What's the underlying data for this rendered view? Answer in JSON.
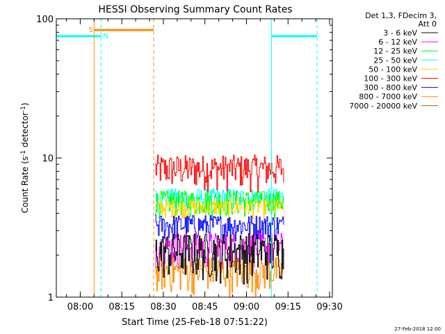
{
  "chart_data": {
    "type": "line",
    "title": "HESSI Observing Summary Count Rates",
    "xlabel": "Start Time (25-Feb-18 07:51:22)",
    "ylabel_main": "Count Rate (s",
    "ylabel_sup1": "-1",
    "ylabel_mid": " detector",
    "ylabel_sup2": "-1",
    "ylabel_end": ")",
    "y_scale": "log",
    "ylim": [
      1,
      100
    ],
    "xlim": [
      "07:51:22",
      "09:31:00"
    ],
    "x_ticks": [
      {
        "label": "08:00",
        "t": "08:00"
      },
      {
        "label": "08:15",
        "t": "08:15"
      },
      {
        "label": "08:30",
        "t": "08:30"
      },
      {
        "label": "08:45",
        "t": "08:45"
      },
      {
        "label": "09:00",
        "t": "09:00"
      },
      {
        "label": "09:15",
        "t": "09:15"
      },
      {
        "label": "09:30",
        "t": "09:30"
      }
    ],
    "y_ticks": [
      {
        "label": "1",
        "v": 1
      },
      {
        "label": "10",
        "v": 10
      },
      {
        "label": "100",
        "v": 100
      }
    ],
    "legend": {
      "position": "right",
      "header1": "Det 1,3, FDecim 3,",
      "header2": "Att 0",
      "entries": [
        {
          "label": "3 - 6 keV",
          "color": "#000000"
        },
        {
          "label": "6 - 12 keV",
          "color": "#ff00ff"
        },
        {
          "label": "12 - 25 keV",
          "color": "#00ff00"
        },
        {
          "label": "25 - 50 keV",
          "color": "#00ffff"
        },
        {
          "label": "50 - 100 keV",
          "color": "#ffd700"
        },
        {
          "label": "100 - 300 keV",
          "color": "#ff0000"
        },
        {
          "label": "300 - 800 keV",
          "color": "#0000ff"
        },
        {
          "label": "800 - 7000 keV",
          "color": "#ff8c00"
        },
        {
          "label": "7000 - 20000 keV",
          "color": "#8b6508"
        }
      ]
    },
    "time_markers": [
      {
        "type": "night_start",
        "t": "07:51:22",
        "style": "solid",
        "color": "#00ffff"
      },
      {
        "type": "night_end",
        "t": "08:07:30",
        "style": "dashed",
        "color": "#00ffff"
      },
      {
        "type": "night_start",
        "t": "09:09:00",
        "style": "solid",
        "color": "#00ffff"
      },
      {
        "type": "night_end",
        "t": "09:25:30",
        "style": "dashed",
        "color": "#00ffff"
      },
      {
        "type": "saa_start",
        "t": "08:05:00",
        "style": "solid",
        "color": "#ff8c00"
      },
      {
        "type": "saa_end",
        "t": "08:26:30",
        "style": "dashed",
        "color": "#ff8c00"
      }
    ],
    "flag_bars": [
      {
        "label": "N",
        "t_start": "07:51:22",
        "t_end": "08:07:30",
        "y": 75,
        "color": "#00ffff"
      },
      {
        "label": "",
        "t_start": "09:09:00",
        "t_end": "09:25:30",
        "y": 75,
        "color": "#00ffff"
      },
      {
        "label": "S",
        "t_start": "08:05:00",
        "t_end": "08:26:30",
        "y": 83,
        "color": "#ff8c00"
      }
    ],
    "data_interval": {
      "t_start": "08:27:00",
      "t_end": "09:13:30"
    },
    "series": [
      {
        "name": "100 - 300 keV",
        "color": "#ff0000",
        "level_min": 5.5,
        "level_max": 10.5
      },
      {
        "name": "25 - 50 keV",
        "color": "#00ffff",
        "level_min": 4.0,
        "level_max": 6.0
      },
      {
        "name": "12 - 25 keV",
        "color": "#00ff00",
        "level_min": 3.6,
        "level_max": 5.8
      },
      {
        "name": "50 - 100 keV",
        "color": "#ffd700",
        "level_min": 3.6,
        "level_max": 5.0
      },
      {
        "name": "300 - 800 keV",
        "color": "#0000ff",
        "level_min": 2.4,
        "level_max": 3.9
      },
      {
        "name": "6 - 12 keV",
        "color": "#ff00ff",
        "level_min": 1.5,
        "level_max": 2.9
      },
      {
        "name": "800 - 7000 keV",
        "color": "#ff8c00",
        "level_min": 1.0,
        "level_max": 1.95
      },
      {
        "name": "3 - 6 keV",
        "color": "#000000",
        "level_min": 1.2,
        "level_max": 2.9
      }
    ],
    "footer_date": "27-Feb-2018 12:00"
  }
}
